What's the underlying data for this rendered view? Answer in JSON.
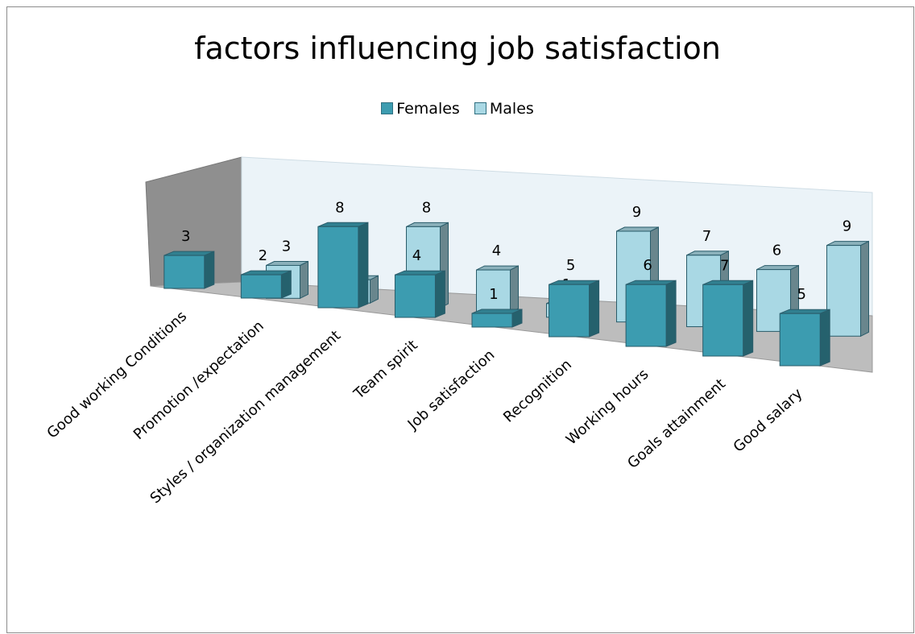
{
  "chart_data": {
    "type": "bar",
    "title": "factors influencing job satisfaction",
    "categories": [
      "Good working Conditions",
      "Promotion /expectation",
      "Styles / organization management",
      "Team spirit",
      "Job satisfaction",
      "Recognition",
      "Working hours",
      "Goals attainment",
      "Good salary"
    ],
    "series": [
      {
        "name": "Females",
        "values": [
          3,
          2,
          8,
          4,
          1,
          5,
          6,
          7,
          5
        ]
      },
      {
        "name": "Males",
        "values": [
          3,
          2,
          8,
          4,
          1,
          9,
          7,
          6,
          9
        ]
      }
    ],
    "ylim": [
      0,
      10
    ],
    "grid": false,
    "legend_position": "top",
    "colors": {
      "Females": "#3c9cb0",
      "Males": "#a9d8e4",
      "wall": "#ebf3f8",
      "side_wall": "#8f8f8f",
      "floor": "#bdbdbd"
    }
  }
}
